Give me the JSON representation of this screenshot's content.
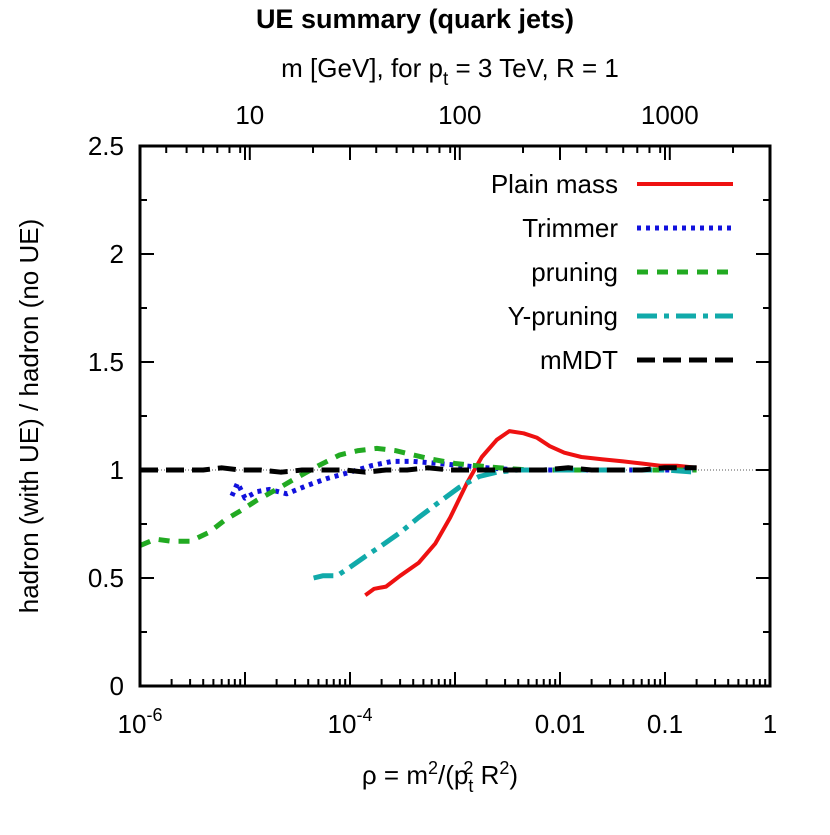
{
  "chart_data": {
    "type": "line",
    "title": "UE summary (quark jets)",
    "top_axis": {
      "label_main": "m [GeV], for p",
      "label_sub": "t",
      "label_rest": " = 3 TeV, R = 1",
      "ticks": [
        {
          "label": "10",
          "rho": 1.111e-05
        },
        {
          "label": "100",
          "rho": 0.001111
        },
        {
          "label": "1000",
          "rho": 0.1111
        }
      ]
    },
    "xlabel": {
      "main": "ρ = m",
      "sup1": "2",
      "mid": "/(p",
      "sub": "t",
      "sup2": "2",
      "end": " R",
      "sup3": "2",
      "close": ")"
    },
    "ylabel": "hadron (with UE) / hadron (no UE)",
    "xscale": "log",
    "xlim": [
      1e-06,
      1
    ],
    "ylim": [
      0,
      2.5
    ],
    "x_ticks": [
      {
        "value": 1e-06,
        "base": "10",
        "exp": "-6"
      },
      {
        "value": 0.0001,
        "base": "10",
        "exp": "-4"
      },
      {
        "value": 0.01,
        "label": "0.01"
      },
      {
        "value": 0.1,
        "label": "0.1"
      },
      {
        "value": 1,
        "label": "1"
      }
    ],
    "y_ticks": [
      "0",
      "0.5",
      "1",
      "1.5",
      "2",
      "2.5"
    ],
    "reference_line": 1,
    "legend_position": "top-right",
    "series": [
      {
        "name": "Plain mass",
        "color": "#ee1111",
        "style": "solid",
        "points": [
          [
            0.00014,
            0.42
          ],
          [
            0.00017,
            0.45
          ],
          [
            0.00022,
            0.46
          ],
          [
            0.0003,
            0.51
          ],
          [
            0.00045,
            0.57
          ],
          [
            0.00065,
            0.66
          ],
          [
            0.0009,
            0.78
          ],
          [
            0.0013,
            0.94
          ],
          [
            0.0018,
            1.06
          ],
          [
            0.0025,
            1.14
          ],
          [
            0.0033,
            1.18
          ],
          [
            0.0045,
            1.17
          ],
          [
            0.006,
            1.15
          ],
          [
            0.008,
            1.11
          ],
          [
            0.011,
            1.08
          ],
          [
            0.016,
            1.06
          ],
          [
            0.025,
            1.05
          ],
          [
            0.04,
            1.04
          ],
          [
            0.06,
            1.03
          ],
          [
            0.09,
            1.02
          ],
          [
            0.13,
            1.02
          ],
          [
            0.2,
            1.01
          ]
        ]
      },
      {
        "name": "Trimmer",
        "color": "#1111dd",
        "style": "dotted",
        "points": [
          [
            7.5e-06,
            0.88
          ],
          [
            8.5e-06,
            0.94
          ],
          [
            1e-05,
            0.87
          ],
          [
            1.3e-05,
            0.9
          ],
          [
            1.7e-05,
            0.91
          ],
          [
            2.5e-05,
            0.89
          ],
          [
            4e-05,
            0.93
          ],
          [
            6e-05,
            0.96
          ],
          [
            0.0001,
            0.99
          ],
          [
            0.00016,
            1.02
          ],
          [
            0.00025,
            1.04
          ],
          [
            0.0004,
            1.04
          ],
          [
            0.0007,
            1.03
          ],
          [
            0.0012,
            1.02
          ],
          [
            0.002,
            1.01
          ],
          [
            0.004,
            1.0
          ],
          [
            0.008,
            1.0
          ],
          [
            0.02,
            1.0
          ],
          [
            0.05,
            1.0
          ],
          [
            0.1,
            1.0
          ],
          [
            0.2,
            1.0
          ]
        ]
      },
      {
        "name": "pruning",
        "color": "#22aa22",
        "style": "short-dashed",
        "points": [
          [
            1e-06,
            0.65
          ],
          [
            1.4e-06,
            0.68
          ],
          [
            2e-06,
            0.67
          ],
          [
            3e-06,
            0.67
          ],
          [
            4.5e-06,
            0.71
          ],
          [
            6.5e-06,
            0.77
          ],
          [
            9e-06,
            0.81
          ],
          [
            1.3e-05,
            0.86
          ],
          [
            2e-05,
            0.91
          ],
          [
            3e-05,
            0.96
          ],
          [
            5e-05,
            1.02
          ],
          [
            8e-05,
            1.07
          ],
          [
            0.00012,
            1.09
          ],
          [
            0.00018,
            1.1
          ],
          [
            0.00027,
            1.09
          ],
          [
            0.0004,
            1.07
          ],
          [
            0.0006,
            1.05
          ],
          [
            0.001,
            1.03
          ],
          [
            0.0016,
            1.02
          ],
          [
            0.0026,
            1.01
          ],
          [
            0.005,
            1.0
          ],
          [
            0.01,
            1.0
          ],
          [
            0.03,
            1.0
          ],
          [
            0.08,
            1.0
          ],
          [
            0.2,
            1.0
          ]
        ]
      },
      {
        "name": "Y-pruning",
        "color": "#11aaaa",
        "style": "dash-dot",
        "points": [
          [
            4.5e-05,
            0.5
          ],
          [
            5.5e-05,
            0.51
          ],
          [
            7.5e-05,
            0.51
          ],
          [
            0.0001,
            0.55
          ],
          [
            0.00014,
            0.6
          ],
          [
            0.0002,
            0.65
          ],
          [
            0.0003,
            0.71
          ],
          [
            0.00045,
            0.78
          ],
          [
            0.0007,
            0.85
          ],
          [
            0.0011,
            0.92
          ],
          [
            0.0017,
            0.97
          ],
          [
            0.0025,
            0.99
          ],
          [
            0.004,
            1.0
          ],
          [
            0.007,
            1.0
          ],
          [
            0.012,
            1.0
          ],
          [
            0.02,
            1.0
          ],
          [
            0.035,
            1.0
          ],
          [
            0.06,
            1.0
          ],
          [
            0.1,
            1.0
          ],
          [
            0.2,
            0.99
          ]
        ]
      },
      {
        "name": "mMDT",
        "color": "#000000",
        "style": "long-dashed",
        "points": [
          [
            1e-06,
            1.0
          ],
          [
            1.5e-06,
            1.0
          ],
          [
            2.5e-06,
            1.0
          ],
          [
            4e-06,
            1.0
          ],
          [
            6e-06,
            1.01
          ],
          [
            9e-06,
            1.0
          ],
          [
            1.4e-05,
            1.0
          ],
          [
            2.2e-05,
            0.99
          ],
          [
            3.5e-05,
            1.0
          ],
          [
            5.5e-05,
            1.0
          ],
          [
            9e-05,
            1.0
          ],
          [
            0.00014,
            0.99
          ],
          [
            0.00022,
            1.0
          ],
          [
            0.00035,
            1.0
          ],
          [
            0.00055,
            1.01
          ],
          [
            0.0009,
            1.0
          ],
          [
            0.0015,
            1.0
          ],
          [
            0.0025,
            1.0
          ],
          [
            0.004,
            1.0
          ],
          [
            0.007,
            1.0
          ],
          [
            0.012,
            1.01
          ],
          [
            0.02,
            1.0
          ],
          [
            0.035,
            1.0
          ],
          [
            0.06,
            1.0
          ],
          [
            0.1,
            1.01
          ],
          [
            0.2,
            1.01
          ]
        ]
      }
    ]
  }
}
